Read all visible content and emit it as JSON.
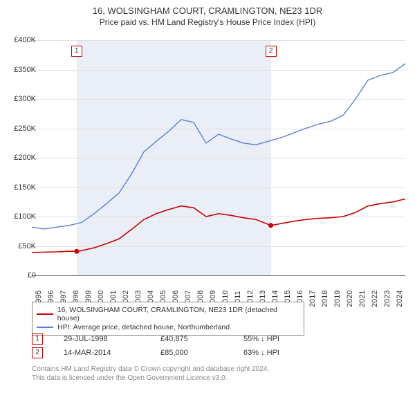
{
  "title": "16, WOLSINGHAM COURT, CRAMLINGTON, NE23 1DR",
  "subtitle": "Price paid vs. HM Land Registry's House Price Index (HPI)",
  "chart": {
    "type": "line",
    "background_color": "#ffffff",
    "shaded_region": {
      "x_start": 1998.6,
      "x_end": 2014.2,
      "color": "#e9eef7"
    },
    "grid_color": "#e0e0e0",
    "axis_color": "#666666",
    "text_color": "#333333",
    "y_axis": {
      "min": 0,
      "max": 400000,
      "tick_step": 50000,
      "labels": [
        "£0",
        "£50K",
        "£100K",
        "£150K",
        "£200K",
        "£250K",
        "£300K",
        "£350K",
        "£400K"
      ],
      "fontsize": 11
    },
    "x_axis": {
      "min": 1995,
      "max": 2025,
      "ticks": [
        1995,
        1996,
        1997,
        1998,
        1999,
        2000,
        2001,
        2002,
        2003,
        2004,
        2005,
        2006,
        2007,
        2008,
        2009,
        2010,
        2011,
        2012,
        2013,
        2014,
        2015,
        2016,
        2017,
        2018,
        2019,
        2020,
        2021,
        2022,
        2023,
        2024
      ],
      "fontsize": 11,
      "rotation_deg": -90
    },
    "series": [
      {
        "name": "16, WOLSINGHAM COURT, CRAMLINGTON, NE23 1DR (detached house)",
        "color": "#cc0000",
        "line_width": 1.6,
        "data": [
          {
            "x": 1995,
            "y": 39000
          },
          {
            "x": 1996,
            "y": 39500
          },
          {
            "x": 1997,
            "y": 40000
          },
          {
            "x": 1998,
            "y": 41000
          },
          {
            "x": 1998.6,
            "y": 40875
          },
          {
            "x": 1999,
            "y": 42000
          },
          {
            "x": 2000,
            "y": 47000
          },
          {
            "x": 2001,
            "y": 54000
          },
          {
            "x": 2002,
            "y": 62000
          },
          {
            "x": 2003,
            "y": 78000
          },
          {
            "x": 2004,
            "y": 95000
          },
          {
            "x": 2005,
            "y": 105000
          },
          {
            "x": 2006,
            "y": 112000
          },
          {
            "x": 2007,
            "y": 118000
          },
          {
            "x": 2008,
            "y": 115000
          },
          {
            "x": 2009,
            "y": 100000
          },
          {
            "x": 2010,
            "y": 105000
          },
          {
            "x": 2011,
            "y": 102000
          },
          {
            "x": 2012,
            "y": 98000
          },
          {
            "x": 2013,
            "y": 95000
          },
          {
            "x": 2014.2,
            "y": 85000
          },
          {
            "x": 2015,
            "y": 88000
          },
          {
            "x": 2016,
            "y": 92000
          },
          {
            "x": 2017,
            "y": 95000
          },
          {
            "x": 2018,
            "y": 97000
          },
          {
            "x": 2019,
            "y": 98000
          },
          {
            "x": 2020,
            "y": 100000
          },
          {
            "x": 2021,
            "y": 107000
          },
          {
            "x": 2022,
            "y": 118000
          },
          {
            "x": 2023,
            "y": 122000
          },
          {
            "x": 2024,
            "y": 125000
          },
          {
            "x": 2025,
            "y": 130000
          }
        ]
      },
      {
        "name": "HPI: Average price, detached house, Northumberland",
        "color": "#5b7fd6",
        "line_width": 1.4,
        "data": [
          {
            "x": 1995,
            "y": 82000
          },
          {
            "x": 1996,
            "y": 79000
          },
          {
            "x": 1997,
            "y": 82000
          },
          {
            "x": 1998,
            "y": 85000
          },
          {
            "x": 1999,
            "y": 90000
          },
          {
            "x": 2000,
            "y": 105000
          },
          {
            "x": 2001,
            "y": 122000
          },
          {
            "x": 2002,
            "y": 140000
          },
          {
            "x": 2003,
            "y": 172000
          },
          {
            "x": 2004,
            "y": 210000
          },
          {
            "x": 2005,
            "y": 228000
          },
          {
            "x": 2006,
            "y": 245000
          },
          {
            "x": 2007,
            "y": 265000
          },
          {
            "x": 2008,
            "y": 260000
          },
          {
            "x": 2009,
            "y": 225000
          },
          {
            "x": 2010,
            "y": 240000
          },
          {
            "x": 2011,
            "y": 232000
          },
          {
            "x": 2012,
            "y": 225000
          },
          {
            "x": 2013,
            "y": 222000
          },
          {
            "x": 2014,
            "y": 228000
          },
          {
            "x": 2015,
            "y": 234000
          },
          {
            "x": 2016,
            "y": 242000
          },
          {
            "x": 2017,
            "y": 250000
          },
          {
            "x": 2018,
            "y": 257000
          },
          {
            "x": 2019,
            "y": 262000
          },
          {
            "x": 2020,
            "y": 272000
          },
          {
            "x": 2021,
            "y": 300000
          },
          {
            "x": 2022,
            "y": 332000
          },
          {
            "x": 2023,
            "y": 340000
          },
          {
            "x": 2024,
            "y": 345000
          },
          {
            "x": 2025,
            "y": 360000
          }
        ]
      }
    ],
    "markers": [
      {
        "label": "1",
        "x": 1998.6,
        "y": 40875,
        "color": "#cc0000"
      },
      {
        "label": "2",
        "x": 2014.2,
        "y": 85000,
        "color": "#cc0000"
      }
    ]
  },
  "legend": {
    "border_color": "#888888",
    "items": [
      {
        "color": "#cc0000",
        "label": "16, WOLSINGHAM COURT, CRAMLINGTON, NE23 1DR (detached house)"
      },
      {
        "color": "#5b7fd6",
        "label": "HPI: Average price, detached house, Northumberland"
      }
    ]
  },
  "transactions": [
    {
      "marker": "1",
      "date": "29-JUL-1998",
      "price": "£40,875",
      "comparison": "55% ↓ HPI"
    },
    {
      "marker": "2",
      "date": "14-MAR-2014",
      "price": "£85,000",
      "comparison": "63% ↓ HPI"
    }
  ],
  "footer": {
    "line1": "Contains HM Land Registry data © Crown copyright and database right 2024.",
    "line2": "This data is licensed under the Open Government Licence v3.0.",
    "color": "#888888"
  }
}
